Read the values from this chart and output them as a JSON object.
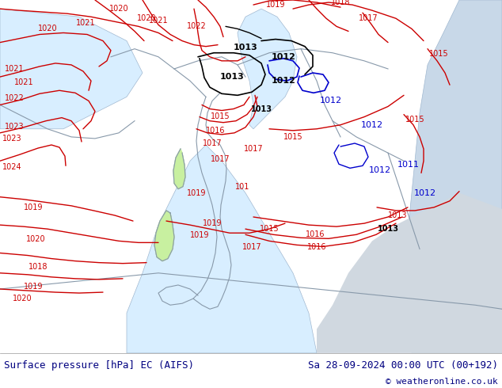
{
  "title_left": "Surface pressure [hPa] EC (AIFS)",
  "title_right": "Sa 28-09-2024 00:00 UTC (00+192)",
  "copyright": "© weatheronline.co.uk",
  "bg_color_land": "#c8f0a0",
  "bg_color_sea": "#d8eeff",
  "bg_color_bottom": "#e8e8e8",
  "text_color_title": "#000080",
  "text_color_copyright": "#000080",
  "isobar_color_red": "#cc0000",
  "isobar_color_black": "#000000",
  "isobar_color_blue": "#0000cc",
  "fig_width": 6.34,
  "fig_height": 4.9,
  "dpi": 100
}
